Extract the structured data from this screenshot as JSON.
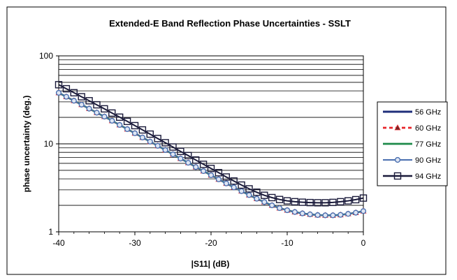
{
  "chart_data": {
    "type": "line",
    "title": "Extended-E Band Reflection Phase Uncertainties - SSLT",
    "xlabel": "|S11| (dB)",
    "ylabel": "phase uncertainty (deg.)",
    "xlim": [
      -40,
      0
    ],
    "ylim": [
      1,
      100
    ],
    "yscale": "log",
    "x_ticks": [
      "-40",
      "-30",
      "-20",
      "-10",
      "0"
    ],
    "y_ticks": [
      "1",
      "10",
      "100"
    ],
    "grid": "horizontal major and minor",
    "legend_position": "right",
    "x": [
      -40,
      -39,
      -38,
      -37,
      -36,
      -35,
      -34,
      -33,
      -32,
      -31,
      -30,
      -29,
      -28,
      -27,
      -26,
      -25,
      -24,
      -23,
      -22,
      -21,
      -20,
      -19,
      -18,
      -17,
      -16,
      -15,
      -14,
      -13,
      -12,
      -11,
      -10,
      -9,
      -8,
      -7,
      -6,
      -5,
      -4,
      -3,
      -2,
      -1,
      0
    ],
    "series": [
      {
        "name": "56 GHz",
        "color": "#1f2f7a",
        "marker": "none",
        "values": [
          38.0,
          34.3,
          30.9,
          27.9,
          25.1,
          22.6,
          20.4,
          18.3,
          16.4,
          14.7,
          13.2,
          11.8,
          10.6,
          9.5,
          8.5,
          7.6,
          6.8,
          6.1,
          5.45,
          4.9,
          4.4,
          3.95,
          3.55,
          3.2,
          2.9,
          2.62,
          2.38,
          2.18,
          2.0,
          1.86,
          1.76,
          1.68,
          1.62,
          1.58,
          1.55,
          1.54,
          1.54,
          1.56,
          1.6,
          1.65,
          1.72
        ]
      },
      {
        "name": "60 GHz",
        "color": "#e8252a",
        "marker": "triangle",
        "values": [
          38.0,
          34.3,
          30.9,
          27.9,
          25.1,
          22.6,
          20.4,
          18.3,
          16.4,
          14.7,
          13.2,
          11.8,
          10.6,
          9.5,
          8.5,
          7.6,
          6.8,
          6.1,
          5.45,
          4.9,
          4.4,
          3.95,
          3.55,
          3.2,
          2.9,
          2.62,
          2.38,
          2.18,
          2.0,
          1.86,
          1.76,
          1.68,
          1.62,
          1.58,
          1.55,
          1.54,
          1.54,
          1.56,
          1.6,
          1.65,
          1.72
        ]
      },
      {
        "name": "77 GHz",
        "color": "#1e8a4a",
        "marker": "none",
        "values": [
          38.0,
          34.3,
          30.9,
          27.9,
          25.1,
          22.6,
          20.4,
          18.3,
          16.4,
          14.7,
          13.2,
          11.8,
          10.6,
          9.5,
          8.5,
          7.6,
          6.8,
          6.1,
          5.45,
          4.9,
          4.4,
          3.95,
          3.55,
          3.2,
          2.9,
          2.62,
          2.38,
          2.18,
          2.0,
          1.86,
          1.76,
          1.68,
          1.62,
          1.58,
          1.55,
          1.54,
          1.54,
          1.56,
          1.6,
          1.65,
          1.72
        ]
      },
      {
        "name": "90 GHz",
        "color": "#4a6fb0",
        "marker": "circle",
        "values": [
          38.0,
          34.3,
          30.9,
          27.9,
          25.1,
          22.6,
          20.4,
          18.3,
          16.4,
          14.7,
          13.2,
          11.8,
          10.6,
          9.5,
          8.5,
          7.6,
          6.8,
          6.1,
          5.45,
          4.9,
          4.4,
          3.95,
          3.55,
          3.2,
          2.9,
          2.62,
          2.38,
          2.18,
          2.0,
          1.86,
          1.76,
          1.68,
          1.62,
          1.58,
          1.55,
          1.54,
          1.54,
          1.56,
          1.6,
          1.65,
          1.72
        ]
      },
      {
        "name": "94 GHz",
        "color": "#1a1a3a",
        "marker": "square",
        "values": [
          47.0,
          42.3,
          38.1,
          34.3,
          30.9,
          27.8,
          25.0,
          22.4,
          20.1,
          18.0,
          16.1,
          14.4,
          12.9,
          11.5,
          10.3,
          9.2,
          8.2,
          7.35,
          6.55,
          5.85,
          5.25,
          4.7,
          4.2,
          3.78,
          3.4,
          3.08,
          2.82,
          2.6,
          2.45,
          2.33,
          2.25,
          2.2,
          2.17,
          2.15,
          2.14,
          2.14,
          2.16,
          2.2,
          2.25,
          2.32,
          2.42
        ]
      }
    ]
  }
}
